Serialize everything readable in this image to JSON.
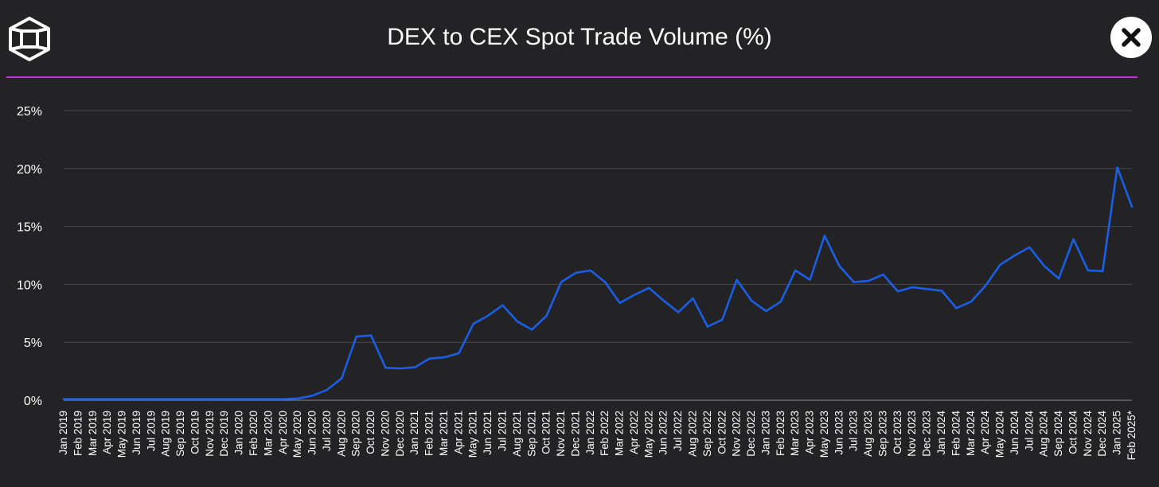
{
  "header": {
    "title": "DEX to CEX Spot Trade Volume (%)",
    "logo_icon": "cube-logo-icon",
    "close_icon": "close-icon",
    "accent_color": "#b23cc8"
  },
  "chart_data": {
    "type": "line",
    "title": "DEX to CEX Spot Trade Volume (%)",
    "xlabel": "",
    "ylabel": "",
    "ylim": [
      0,
      25
    ],
    "yticks": [
      "0%",
      "5%",
      "10%",
      "15%",
      "20%",
      "25%"
    ],
    "grid": true,
    "legend": "none",
    "line_color": "#1b5ee6",
    "categories": [
      "Jan 2019",
      "Feb 2019",
      "Mar 2019",
      "Apr 2019",
      "May 2019",
      "Jun 2019",
      "Jul 2019",
      "Aug 2019",
      "Sep 2019",
      "Oct 2019",
      "Nov 2019",
      "Dec 2019",
      "Jan 2020",
      "Feb 2020",
      "Mar 2020",
      "Apr 2020",
      "May 2020",
      "Jun 2020",
      "Jul 2020",
      "Aug 2020",
      "Sep 2020",
      "Oct 2020",
      "Nov 2020",
      "Dec 2020",
      "Jan 2021",
      "Feb 2021",
      "Mar 2021",
      "Apr 2021",
      "May 2021",
      "Jun 2021",
      "Jul 2021",
      "Aug 2021",
      "Sep 2021",
      "Oct 2021",
      "Nov 2021",
      "Dec 2021",
      "Jan 2022",
      "Feb 2022",
      "Mar 2022",
      "Apr 2022",
      "May 2022",
      "Jun 2022",
      "Jul 2022",
      "Aug 2022",
      "Sep 2022",
      "Oct 2022",
      "Nov 2022",
      "Dec 2022",
      "Jan 2023",
      "Feb 2023",
      "Mar 2023",
      "Apr 2023",
      "May 2023",
      "Jun 2023",
      "Jul 2023",
      "Aug 2023",
      "Sep 2023",
      "Oct 2023",
      "Nov 2023",
      "Dec 2023",
      "Jan 2024",
      "Feb 2024",
      "Mar 2024",
      "Apr 2024",
      "May 2024",
      "Jun 2024",
      "Jul 2024",
      "Aug 2024",
      "Sep 2024",
      "Oct 2024",
      "Nov 2024",
      "Dec 2024",
      "Jan 2025",
      "Feb 2025*"
    ],
    "values": [
      0.1,
      0.1,
      0.1,
      0.1,
      0.1,
      0.1,
      0.1,
      0.1,
      0.1,
      0.1,
      0.1,
      0.1,
      0.1,
      0.1,
      0.1,
      0.1,
      0.15,
      0.4,
      0.9,
      1.9,
      5.5,
      5.6,
      2.8,
      2.75,
      2.85,
      3.6,
      3.7,
      4.05,
      6.6,
      7.3,
      8.2,
      6.8,
      6.1,
      7.3,
      10.2,
      11.0,
      11.2,
      10.2,
      8.4,
      9.1,
      9.7,
      8.6,
      7.6,
      8.8,
      6.35,
      6.95,
      10.4,
      8.6,
      7.7,
      8.5,
      11.2,
      10.4,
      14.2,
      11.6,
      10.2,
      10.3,
      10.85,
      9.4,
      9.75,
      9.6,
      9.45,
      7.95,
      8.5,
      9.9,
      11.7,
      12.5,
      13.2,
      11.6,
      10.5,
      13.9,
      11.2,
      11.15,
      20.1,
      16.7
    ]
  }
}
